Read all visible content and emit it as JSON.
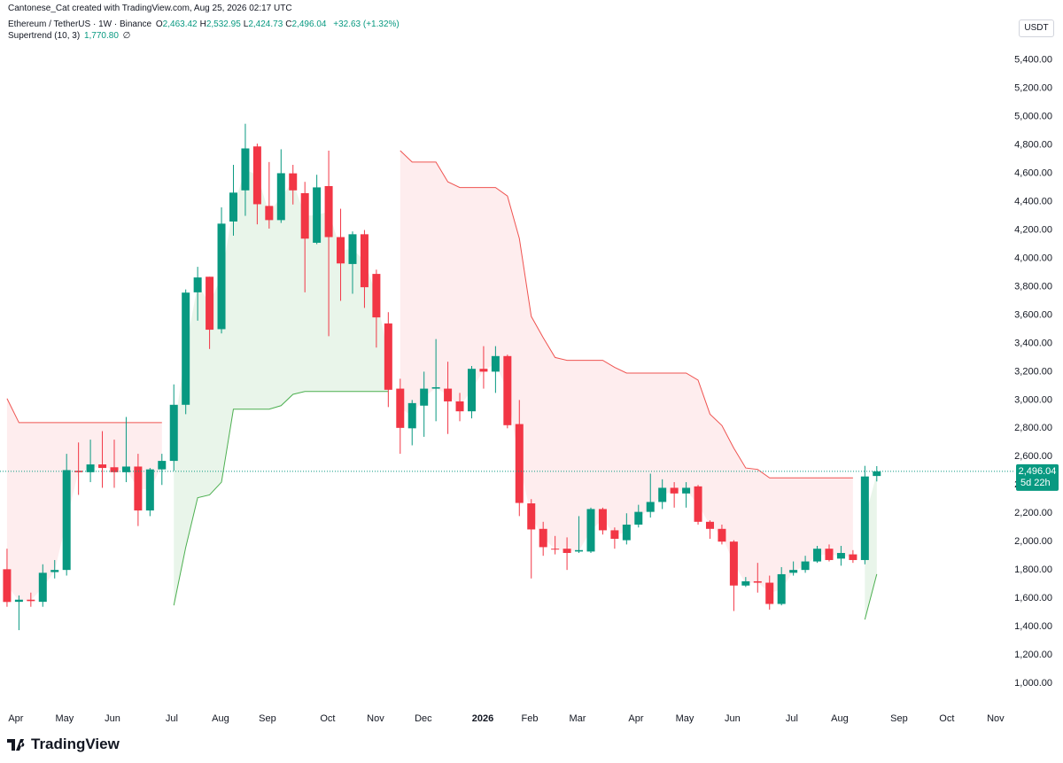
{
  "chart_data": {
    "type": "candlestick",
    "watermark": "Cantonese_Cat created with TradingView.com, Aug 25, 2026 02:17 UTC",
    "legend": {
      "symbol": "Ethereum / TetherUS · 1W · Binance",
      "fields": [
        {
          "key": "O",
          "value": "2,463.42"
        },
        {
          "key": "H",
          "value": "2,532.95"
        },
        {
          "key": "L",
          "value": "2,424.73"
        },
        {
          "key": "C",
          "value": "2,496.04"
        }
      ],
      "change": "+32.63 (+1.32%)",
      "indicator": "Supertrend (10, 3)",
      "indicator_value": "1,770.80",
      "indicator_extra": "∅"
    },
    "currency": "USDT",
    "logo": "TradingView",
    "up_color": "#089981",
    "down_color": "#f23645",
    "open": [
      1805,
      1575,
      1590,
      1575,
      1785,
      1800,
      2500,
      2490,
      2545,
      2525,
      2490,
      2530,
      2220,
      2510,
      2570,
      2966,
      3760,
      3870,
      3500,
      4260,
      4480,
      4790,
      4370,
      4270,
      4600,
      4460,
      4110,
      4510,
      4150,
      3960,
      4170,
      3890,
      3540,
      3080,
      2800,
      2960,
      3080,
      3080,
      2990,
      2920,
      3220,
      3200,
      3310,
      2830,
      2270,
      2090,
      1950,
      1950,
      1930,
      1930,
      2230,
      2080,
      2010,
      2120,
      2210,
      2280,
      2380,
      2340,
      2390,
      2140,
      2090,
      2000,
      1690,
      1720,
      1710,
      1560,
      1780,
      1800,
      1860,
      1950,
      1880,
      1910,
      1870,
      2463.42
    ],
    "high": [
      1950,
      1620,
      1640,
      1840,
      1870,
      2620,
      2700,
      2720,
      2780,
      2720,
      2880,
      2620,
      2520,
      2620,
      3110,
      3780,
      3940,
      3870,
      4360,
      4660,
      4950,
      4810,
      4680,
      4770,
      4660,
      4540,
      4590,
      4760,
      4350,
      4190,
      4200,
      3920,
      3620,
      3150,
      3000,
      3200,
      3430,
      3270,
      3050,
      3240,
      3380,
      3380,
      3320,
      3000,
      2300,
      2140,
      2040,
      2030,
      2180,
      2240,
      2240,
      2100,
      2200,
      2260,
      2480,
      2440,
      2420,
      2420,
      2400,
      2150,
      2120,
      2010,
      1750,
      1850,
      1760,
      1820,
      1860,
      1900,
      1970,
      1980,
      1970,
      1940,
      2535,
      2532.95
    ],
    "low": [
      1540,
      1375,
      1540,
      1540,
      1740,
      1760,
      2330,
      2420,
      2380,
      2380,
      2420,
      2110,
      2180,
      2400,
      2500,
      2900,
      3560,
      3360,
      3470,
      4160,
      4300,
      4240,
      4210,
      4250,
      4380,
      3760,
      4100,
      3450,
      3700,
      3750,
      3650,
      3370,
      2950,
      2620,
      2680,
      2740,
      2850,
      2760,
      2850,
      2870,
      3080,
      3050,
      2800,
      2180,
      1740,
      1900,
      1910,
      1800,
      1920,
      1920,
      2050,
      1950,
      1980,
      2100,
      2170,
      2230,
      2240,
      2240,
      2120,
      2020,
      1980,
      1510,
      1680,
      1640,
      1520,
      1550,
      1760,
      1780,
      1850,
      1860,
      1830,
      1850,
      1840,
      2424.73
    ],
    "close": [
      1574,
      1590,
      1580,
      1780,
      1800,
      2505,
      2490,
      2545,
      2520,
      2490,
      2530,
      2220,
      2510,
      2570,
      2966,
      3758,
      3865,
      3496,
      4245,
      4464,
      4776,
      4382,
      4270,
      4601,
      4480,
      4139,
      4501,
      4150,
      3964,
      4170,
      3796,
      3583,
      3072,
      2803,
      2978,
      3080,
      3090,
      2990,
      2920,
      3220,
      3200,
      3310,
      2822,
      2273,
      2086,
      1961,
      1945,
      1920,
      1940,
      2230,
      2080,
      2020,
      2120,
      2210,
      2280,
      2380,
      2340,
      2380,
      2140,
      2090,
      2000,
      1690,
      1720,
      1710,
      1560,
      1770,
      1800,
      1860,
      1950,
      1870,
      1920,
      1870,
      2460,
      2496.04
    ],
    "supertrend_up": [
      null,
      null,
      null,
      null,
      null,
      null,
      null,
      null,
      null,
      null,
      null,
      null,
      null,
      null,
      1550,
      1960,
      2310,
      2330,
      2420,
      2935,
      2935,
      2935,
      2935,
      2960,
      3040,
      3060,
      3060,
      3060,
      3060,
      3060,
      3060,
      3060,
      3060,
      null,
      null,
      null,
      null,
      null,
      null,
      null,
      null,
      null,
      null,
      null,
      null,
      null,
      null,
      null,
      null,
      null,
      null,
      null,
      null,
      null,
      null,
      null,
      null,
      null,
      null,
      null,
      null,
      null,
      null,
      null,
      null,
      null,
      null,
      null,
      null,
      null,
      null,
      null,
      1450,
      1770.8
    ],
    "supertrend_down": [
      3010,
      2840,
      2840,
      2840,
      2840,
      2840,
      2840,
      2840,
      2840,
      2840,
      2840,
      2840,
      2840,
      2840,
      null,
      null,
      null,
      null,
      null,
      null,
      null,
      null,
      null,
      null,
      null,
      null,
      null,
      null,
      null,
      null,
      null,
      null,
      null,
      4760,
      4680,
      4680,
      4680,
      4540,
      4500,
      4500,
      4500,
      4500,
      4440,
      4140,
      3590,
      3440,
      3300,
      3280,
      3280,
      3280,
      3280,
      3230,
      3190,
      3190,
      3190,
      3190,
      3190,
      3190,
      3140,
      2900,
      2820,
      2660,
      2520,
      2510,
      2450,
      2450,
      2450,
      2450,
      2450,
      2450,
      2450,
      2450,
      null,
      null
    ],
    "supertrend_up_color": "#4caf50",
    "supertrend_down_color": "#ef5350",
    "price_tag": {
      "label": "2,496.04",
      "countdown": "5d 22h"
    },
    "xlim": [
      -0.59,
      84.54
    ],
    "xticks": [
      {
        "value": 0.74,
        "label": "Apr"
      },
      {
        "value": 4.83,
        "label": "May"
      },
      {
        "value": 8.85,
        "label": "Jun"
      },
      {
        "value": 13.83,
        "label": "Jul"
      },
      {
        "value": 17.92,
        "label": "Aug"
      },
      {
        "value": 21.86,
        "label": "Sep"
      },
      {
        "value": 26.91,
        "label": "Oct"
      },
      {
        "value": 30.93,
        "label": "Nov"
      },
      {
        "value": 34.94,
        "label": "Dec"
      },
      {
        "value": 39.93,
        "label": "2026"
      },
      {
        "value": 43.87,
        "label": "Feb"
      },
      {
        "value": 47.88,
        "label": "Mar"
      },
      {
        "value": 52.79,
        "label": "Apr"
      },
      {
        "value": 56.88,
        "label": "May"
      },
      {
        "value": 60.89,
        "label": "Jun"
      },
      {
        "value": 65.87,
        "label": "Jul"
      },
      {
        "value": 69.89,
        "label": "Aug"
      },
      {
        "value": 74.87,
        "label": "Sep"
      },
      {
        "value": 78.88,
        "label": "Oct"
      },
      {
        "value": 82.97,
        "label": "Nov"
      }
    ],
    "ylim": [
      850,
      5730
    ],
    "yticks": [
      {
        "value": 1000,
        "label": "1,000.00"
      },
      {
        "value": 1200,
        "label": "1,200.00"
      },
      {
        "value": 1400,
        "label": "1,400.00"
      },
      {
        "value": 1600,
        "label": "1,600.00"
      },
      {
        "value": 1800,
        "label": "1,800.00"
      },
      {
        "value": 2000,
        "label": "2,000.00"
      },
      {
        "value": 2200,
        "label": "2,200.00"
      },
      {
        "value": 2400,
        "label": "2,400.00"
      },
      {
        "value": 2600,
        "label": "2,600.00"
      },
      {
        "value": 2800,
        "label": "2,800.00"
      },
      {
        "value": 3000,
        "label": "3,000.00"
      },
      {
        "value": 3200,
        "label": "3,200.00"
      },
      {
        "value": 3400,
        "label": "3,400.00"
      },
      {
        "value": 3600,
        "label": "3,600.00"
      },
      {
        "value": 3800,
        "label": "3,800.00"
      },
      {
        "value": 4000,
        "label": "4,000.00"
      },
      {
        "value": 4200,
        "label": "4,200.00"
      },
      {
        "value": 4400,
        "label": "4,400.00"
      },
      {
        "value": 4600,
        "label": "4,600.00"
      },
      {
        "value": 4800,
        "label": "4,800.00"
      },
      {
        "value": 5000,
        "label": "5,000.00"
      },
      {
        "value": 5200,
        "label": "5,200.00"
      },
      {
        "value": 5400,
        "label": "5,400.00"
      }
    ],
    "grid": false
  }
}
